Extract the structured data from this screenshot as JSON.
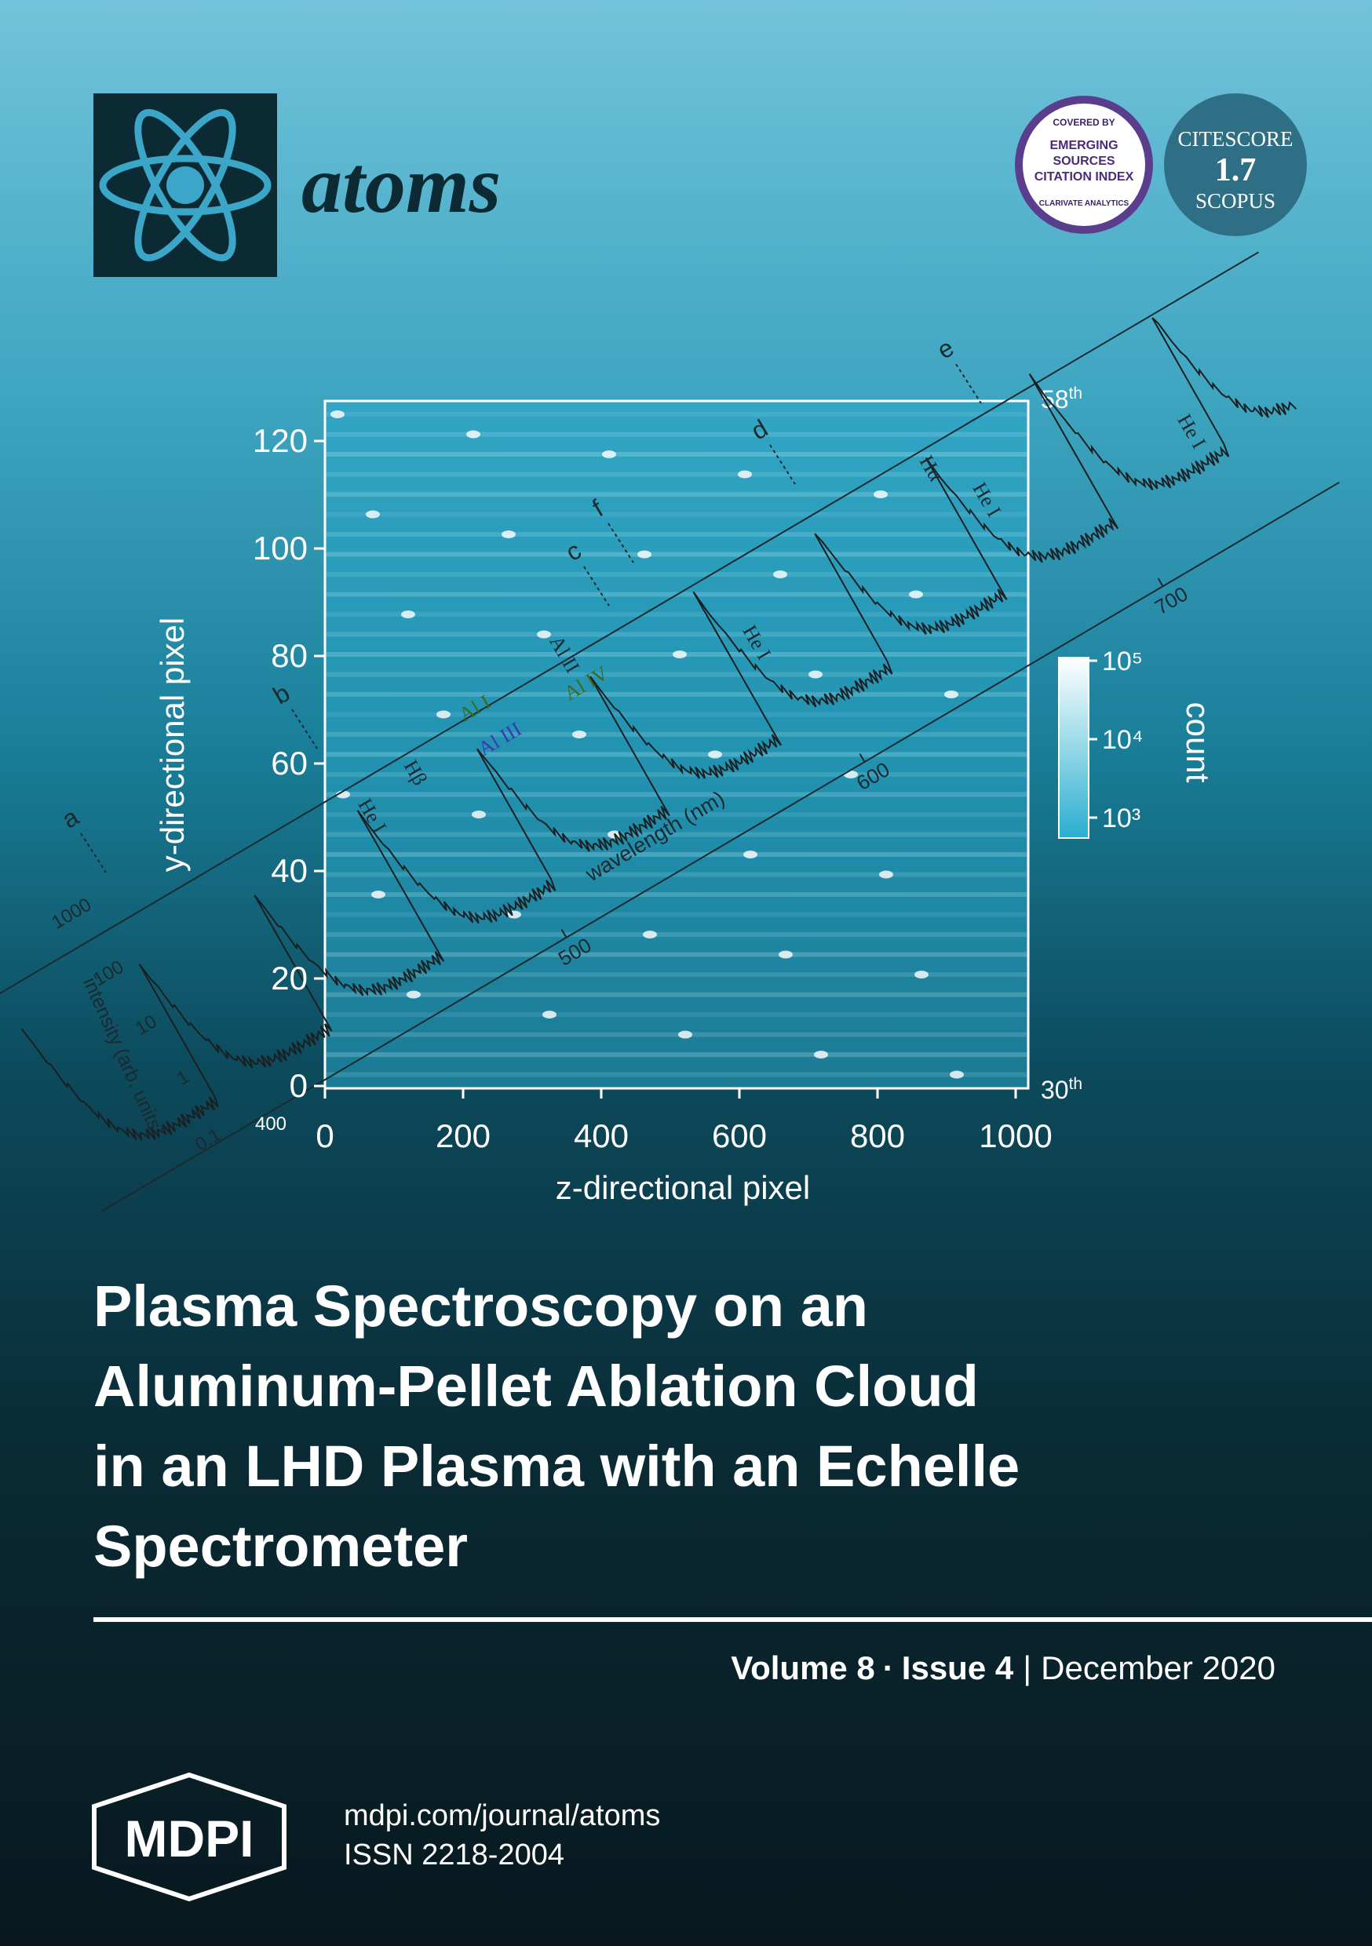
{
  "journal": {
    "name": "atoms"
  },
  "badges": {
    "esci": {
      "top": "COVERED BY",
      "lines": [
        "EMERGING",
        "SOURCES",
        "CITATION INDEX"
      ],
      "bottom": "CLARIVATE ANALYTICS"
    },
    "citescore": {
      "label": "CITESCORE",
      "value": "1.7",
      "source": "SCOPUS"
    }
  },
  "cover_figure": {
    "x_axis_label": "z-directional pixel",
    "y_axis_label": "y-directional pixel",
    "x_ticks": [
      "0",
      "200",
      "400",
      "600",
      "800",
      "1000"
    ],
    "y_ticks": [
      "0",
      "20",
      "40",
      "60",
      "80",
      "100",
      "120"
    ],
    "colorbar_ticks": [
      "10⁵",
      "10⁴",
      "10³"
    ],
    "colorbar_label": "count",
    "orders": [
      {
        "number": "58",
        "suffix": "th"
      },
      {
        "number": "30",
        "suffix": "th"
      }
    ],
    "wavelength_label": "wavelength (nm)",
    "wavelength_ticks": [
      "500",
      "600",
      "700"
    ],
    "intensity_label": "intensity (arb. units)",
    "intensity_ticks": [
      "1000",
      "100",
      "10",
      "1",
      "0.1"
    ],
    "pixel_tick": "400",
    "markers": [
      "a",
      "b",
      "c",
      "d",
      "e",
      "f"
    ],
    "line_labels": [
      "He I",
      "Hβ",
      "Al I",
      "Al III",
      "Al II",
      "Al IV",
      "He I",
      "Hα",
      "He I",
      "He I"
    ]
  },
  "article_title": [
    "Plasma Spectroscopy on an",
    "Aluminum-Pellet Ablation Cloud",
    "in an LHD Plasma with an Echelle",
    "Spectrometer"
  ],
  "issue": {
    "volume": "Volume 8",
    "separator": "·",
    "issue": "Issue 4",
    "divider": "|",
    "date": "December 2020"
  },
  "publisher": {
    "logo": "MDPI",
    "url": "mdpi.com/journal/atoms",
    "issn": "ISSN 2218-2004"
  }
}
